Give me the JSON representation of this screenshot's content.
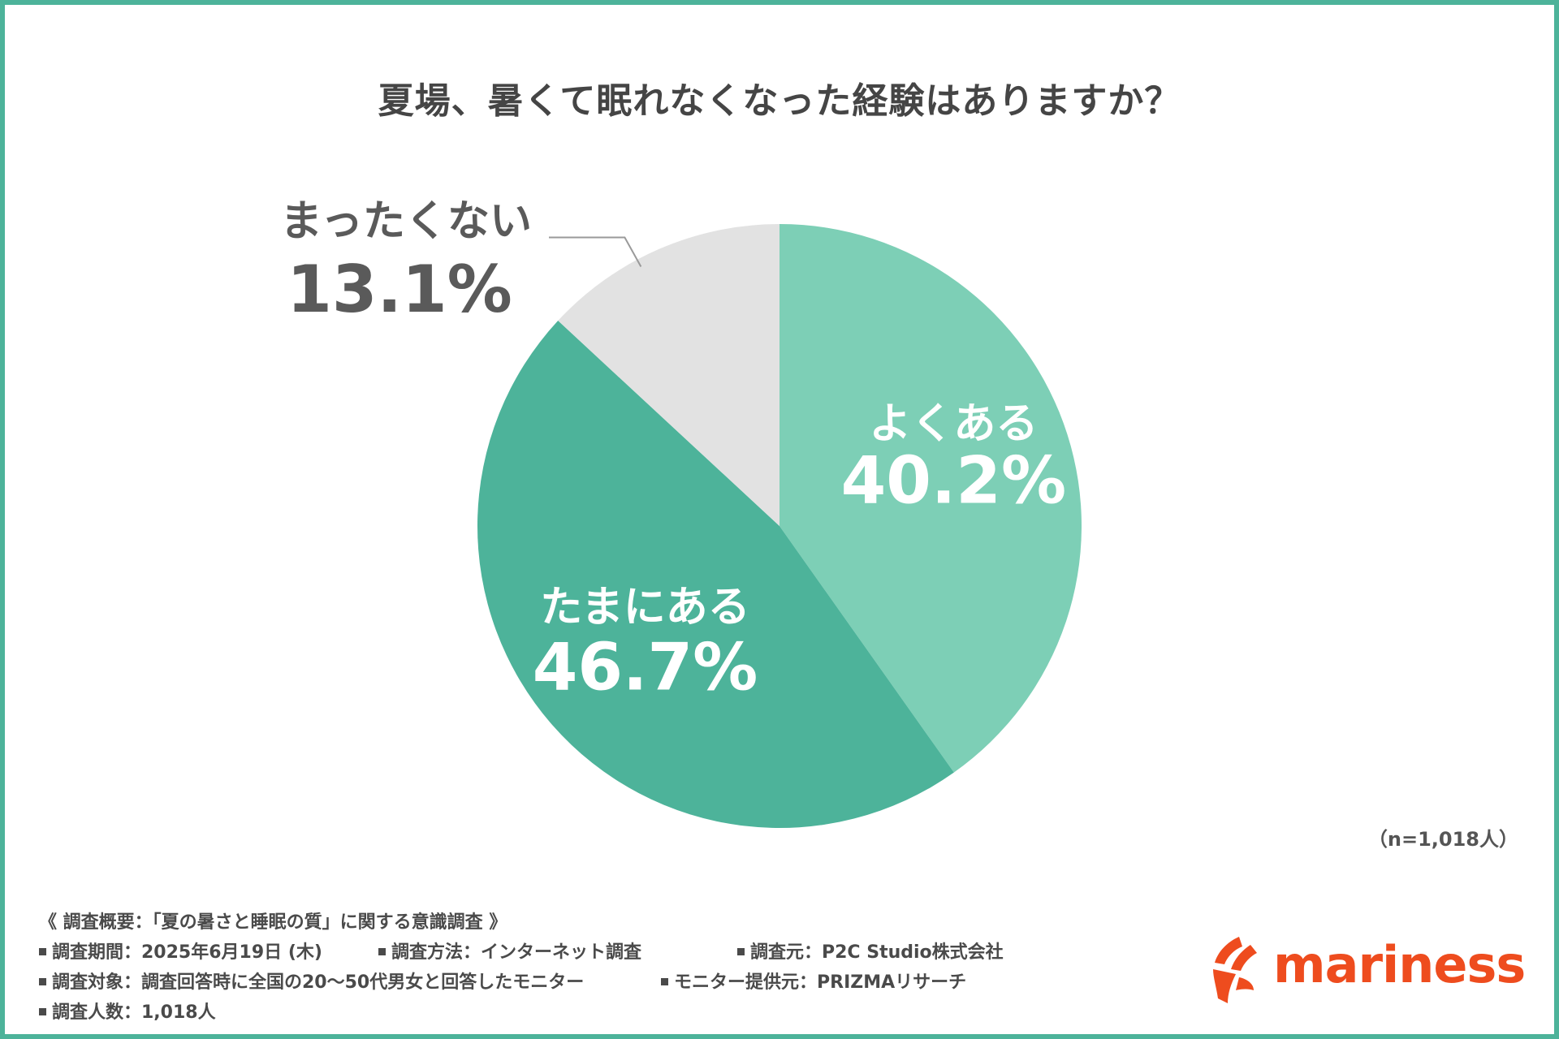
{
  "chart_data": {
    "type": "pie",
    "title": "夏場、暑くて眠れなくなった経験はありますか？",
    "slices": [
      {
        "label": "よくある",
        "value": 40.2,
        "display": "40.2%",
        "color": "#7dcfb6"
      },
      {
        "label": "たまにある",
        "value": 46.7,
        "display": "46.7%",
        "color": "#4db39a"
      },
      {
        "label": "まったくない",
        "value": 13.1,
        "display": "13.1%",
        "color": "#e2e2e2"
      }
    ],
    "start": "12 o'clock",
    "direction": "clockwise"
  },
  "sample_note": "（n=1,018人）",
  "survey": {
    "heading": "《 調査概要：「夏の暑さと睡眠の質」に関する意識調査 》",
    "period": "調査期間：2025年6月19日 (木)",
    "method": "調査方法：インターネット調査",
    "source": "調査元：P2C Studio株式会社",
    "target": "調査対象：調査回答時に全国の20～50代男女と回答したモニター",
    "provider": "モニター提供元：PRIZMAリサーチ",
    "count": "調査人数：1,018人"
  },
  "brand": {
    "name": "mariness",
    "color": "#ee4c1e"
  },
  "colors": {
    "frame": "#4db39a",
    "text": "#4a4a4a"
  }
}
